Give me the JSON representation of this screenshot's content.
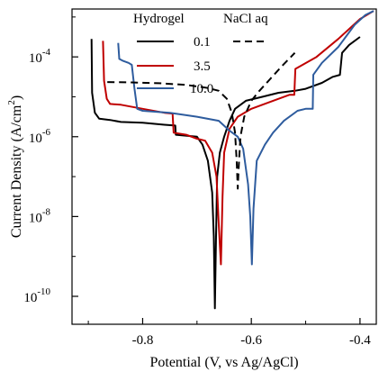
{
  "chart_data": {
    "type": "line",
    "xlabel": "Potential (V, vs Ag/AgCl)",
    "ylabel_main": "Current Density (A/cm",
    "ylabel_sup": "2",
    "ylabel_tail": ")",
    "x_scale": "linear",
    "y_scale": "log",
    "xlim": [
      -0.93,
      -0.37
    ],
    "ylim_log10": [
      -10.7,
      -2.8
    ],
    "x_ticks": [
      {
        "value": -0.8,
        "label": "-0.8"
      },
      {
        "value": -0.6,
        "label": "-0.6"
      },
      {
        "value": -0.4,
        "label": "-0.4"
      }
    ],
    "y_ticks": [
      {
        "exp": -4,
        "base": "10",
        "sup": "-4"
      },
      {
        "exp": -6,
        "base": "10",
        "sup": "-6"
      },
      {
        "exp": -8,
        "base": "10",
        "sup": "-8"
      },
      {
        "exp": -10,
        "base": "10",
        "sup": "-10"
      }
    ],
    "grid": false,
    "legend": {
      "placement": "top",
      "header_left": "Hydrogel",
      "header_right": "NaCl aq",
      "entries": [
        "0.1",
        "3.5",
        "10.0"
      ]
    },
    "series": [
      {
        "name": "0.1",
        "group": "Hydrogel",
        "color": "#000000",
        "dash": "solid",
        "points": [
          [
            -0.894,
            -3.55
          ],
          [
            -0.893,
            -4.9
          ],
          [
            -0.888,
            -5.4
          ],
          [
            -0.88,
            -5.55
          ],
          [
            -0.86,
            -5.58
          ],
          [
            -0.84,
            -5.63
          ],
          [
            -0.8,
            -5.65
          ],
          [
            -0.76,
            -5.7
          ],
          [
            -0.74,
            -5.72
          ],
          [
            -0.739,
            -5.95
          ],
          [
            -0.7,
            -6.0
          ],
          [
            -0.69,
            -6.2
          ],
          [
            -0.68,
            -6.6
          ],
          [
            -0.672,
            -7.4
          ],
          [
            -0.669,
            -8.5
          ],
          [
            -0.667,
            -10.3
          ],
          [
            -0.665,
            -8.6
          ],
          [
            -0.663,
            -7.0
          ],
          [
            -0.658,
            -6.4
          ],
          [
            -0.65,
            -6.0
          ],
          [
            -0.64,
            -5.6
          ],
          [
            -0.63,
            -5.3
          ],
          [
            -0.61,
            -5.1
          ],
          [
            -0.58,
            -5.0
          ],
          [
            -0.55,
            -4.9
          ],
          [
            -0.52,
            -4.85
          ],
          [
            -0.5,
            -4.8
          ],
          [
            -0.47,
            -4.65
          ],
          [
            -0.45,
            -4.5
          ],
          [
            -0.437,
            -4.45
          ],
          [
            -0.433,
            -3.9
          ],
          [
            -0.42,
            -3.7
          ],
          [
            -0.4,
            -3.5
          ]
        ]
      },
      {
        "name": "3.5",
        "group": "Hydrogel",
        "color": "#c00000",
        "dash": "solid",
        "points": [
          [
            -0.873,
            -3.6
          ],
          [
            -0.871,
            -4.6
          ],
          [
            -0.866,
            -5.05
          ],
          [
            -0.86,
            -5.18
          ],
          [
            -0.84,
            -5.2
          ],
          [
            -0.8,
            -5.3
          ],
          [
            -0.76,
            -5.4
          ],
          [
            -0.745,
            -5.42
          ],
          [
            -0.743,
            -5.9
          ],
          [
            -0.72,
            -5.95
          ],
          [
            -0.7,
            -6.05
          ],
          [
            -0.685,
            -6.1
          ],
          [
            -0.672,
            -6.4
          ],
          [
            -0.664,
            -7.0
          ],
          [
            -0.66,
            -8.2
          ],
          [
            -0.656,
            -9.2
          ],
          [
            -0.653,
            -7.5
          ],
          [
            -0.65,
            -6.4
          ],
          [
            -0.64,
            -5.8
          ],
          [
            -0.625,
            -5.5
          ],
          [
            -0.6,
            -5.3
          ],
          [
            -0.56,
            -5.1
          ],
          [
            -0.53,
            -4.95
          ],
          [
            -0.521,
            -4.95
          ],
          [
            -0.519,
            -4.3
          ],
          [
            -0.48,
            -4.0
          ],
          [
            -0.44,
            -3.55
          ],
          [
            -0.4,
            -3.05
          ],
          [
            -0.375,
            -2.85
          ]
        ]
      },
      {
        "name": "10.0",
        "group": "Hydrogel",
        "color": "#2e5c9e",
        "dash": "solid",
        "points": [
          [
            -0.845,
            -3.65
          ],
          [
            -0.843,
            -4.05
          ],
          [
            -0.836,
            -4.1
          ],
          [
            -0.826,
            -4.15
          ],
          [
            -0.82,
            -4.2
          ],
          [
            -0.815,
            -4.8
          ],
          [
            -0.81,
            -5.3
          ],
          [
            -0.8,
            -5.35
          ],
          [
            -0.75,
            -5.4
          ],
          [
            -0.7,
            -5.5
          ],
          [
            -0.66,
            -5.6
          ],
          [
            -0.64,
            -5.85
          ],
          [
            -0.625,
            -6.0
          ],
          [
            -0.615,
            -6.3
          ],
          [
            -0.606,
            -7.2
          ],
          [
            -0.602,
            -8.0
          ],
          [
            -0.599,
            -9.2
          ],
          [
            -0.596,
            -7.8
          ],
          [
            -0.59,
            -6.6
          ],
          [
            -0.575,
            -6.2
          ],
          [
            -0.56,
            -5.9
          ],
          [
            -0.54,
            -5.6
          ],
          [
            -0.515,
            -5.35
          ],
          [
            -0.5,
            -5.3
          ],
          [
            -0.487,
            -5.3
          ],
          [
            -0.486,
            -4.45
          ],
          [
            -0.47,
            -4.15
          ],
          [
            -0.44,
            -3.75
          ],
          [
            -0.41,
            -3.2
          ],
          [
            -0.39,
            -2.95
          ],
          [
            -0.375,
            -2.85
          ]
        ]
      },
      {
        "name": "0.1",
        "group": "NaCl aq",
        "color": "#000000",
        "dash": "dashed",
        "points": [
          [
            -0.865,
            -4.63
          ],
          [
            -0.82,
            -4.64
          ],
          [
            -0.77,
            -4.66
          ],
          [
            -0.72,
            -4.7
          ],
          [
            -0.68,
            -4.78
          ],
          [
            -0.66,
            -4.85
          ],
          [
            -0.645,
            -5.05
          ],
          [
            -0.636,
            -5.4
          ],
          [
            -0.63,
            -5.9
          ],
          [
            -0.627,
            -6.6
          ],
          [
            -0.625,
            -7.3
          ],
          [
            -0.623,
            -6.7
          ],
          [
            -0.62,
            -6.0
          ],
          [
            -0.613,
            -5.5
          ],
          [
            -0.6,
            -5.1
          ],
          [
            -0.585,
            -4.85
          ],
          [
            -0.565,
            -4.55
          ],
          [
            -0.545,
            -4.25
          ],
          [
            -0.52,
            -3.9
          ]
        ]
      }
    ]
  }
}
